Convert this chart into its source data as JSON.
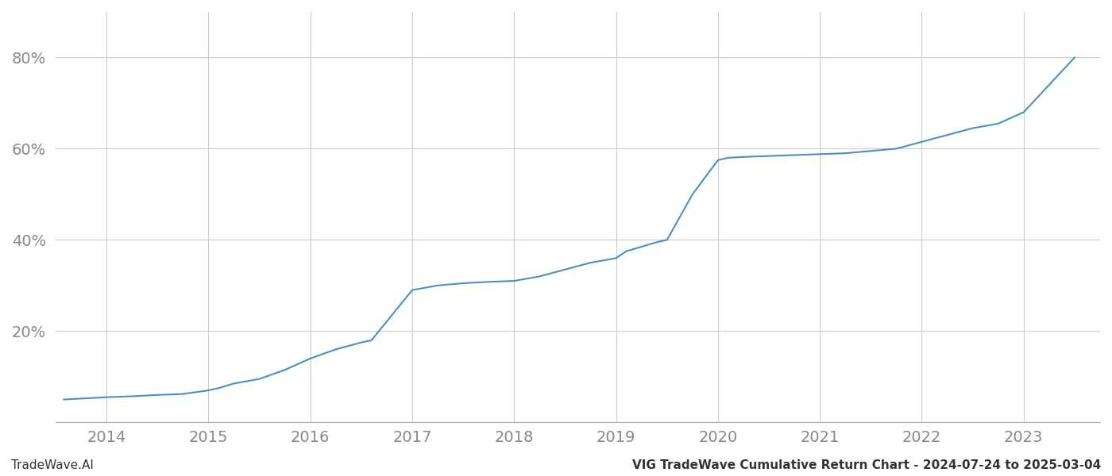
{
  "title_right": "VIG TradeWave Cumulative Return Chart - 2024-07-24 to 2025-03-04",
  "title_left": "TradeWave.AI",
  "line_color": "#4a90c4",
  "background_color": "#ffffff",
  "grid_color": "#cccccc",
  "x_years": [
    2014,
    2015,
    2016,
    2017,
    2018,
    2019,
    2020,
    2021,
    2022,
    2023
  ],
  "data_x": [
    2013.58,
    2013.75,
    2014.0,
    2014.25,
    2014.5,
    2014.75,
    2015.0,
    2015.1,
    2015.25,
    2015.5,
    2015.75,
    2016.0,
    2016.25,
    2016.5,
    2016.6,
    2017.0,
    2017.25,
    2017.5,
    2017.75,
    2018.0,
    2018.25,
    2018.5,
    2018.75,
    2019.0,
    2019.1,
    2019.25,
    2019.4,
    2019.5,
    2019.75,
    2020.0,
    2020.1,
    2020.25,
    2020.5,
    2020.75,
    2021.0,
    2021.25,
    2021.5,
    2021.75,
    2022.0,
    2022.25,
    2022.5,
    2022.75,
    2023.0,
    2023.25,
    2023.5
  ],
  "data_y": [
    5.0,
    5.2,
    5.5,
    5.7,
    6.0,
    6.2,
    7.0,
    7.5,
    8.5,
    9.5,
    11.5,
    14.0,
    16.0,
    17.5,
    18.0,
    29.0,
    30.0,
    30.5,
    30.8,
    31.0,
    32.0,
    33.5,
    35.0,
    36.0,
    37.5,
    38.5,
    39.5,
    40.0,
    50.0,
    57.5,
    58.0,
    58.2,
    58.4,
    58.6,
    58.8,
    59.0,
    59.5,
    60.0,
    61.5,
    63.0,
    64.5,
    65.5,
    68.0,
    74.0,
    80.0
  ],
  "ylim": [
    0,
    90
  ],
  "yticks": [
    20,
    40,
    60,
    80
  ],
  "xlim": [
    2013.5,
    2023.75
  ],
  "line_width": 1.5,
  "tick_label_color": "#888888",
  "footer_fontsize": 11,
  "tick_fontsize": 14
}
